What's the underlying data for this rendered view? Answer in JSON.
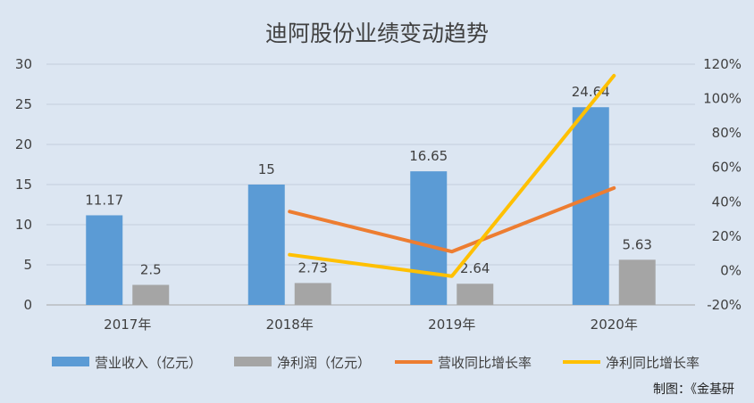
{
  "chart_data": {
    "type": "bar",
    "title": "迪阿股份业绩变动趋势",
    "categories": [
      "2017年",
      "2018年",
      "2019年",
      "2020年"
    ],
    "y_left": {
      "ylim": [
        0,
        30
      ],
      "ticks": [
        "0",
        "5",
        "10",
        "15",
        "20",
        "25",
        "30"
      ]
    },
    "y_right": {
      "ylim": [
        -20,
        120
      ],
      "ticks": [
        "-20%",
        "0%",
        "20%",
        "40%",
        "60%",
        "80%",
        "100%",
        "120%"
      ]
    },
    "series": [
      {
        "name": "营业收入（亿元）",
        "kind": "bar",
        "axis": "left",
        "color": "#5b9bd5",
        "values": [
          11.17,
          15,
          16.65,
          24.64
        ],
        "labels": [
          "11.17",
          "15",
          "16.65",
          "24.64"
        ]
      },
      {
        "name": "净利润（亿元）",
        "kind": "bar",
        "axis": "left",
        "color": "#a5a5a5",
        "values": [
          2.5,
          2.73,
          2.64,
          5.63
        ],
        "labels": [
          "2.5",
          "2.73",
          "2.64",
          "5.63"
        ]
      },
      {
        "name": "营收同比增长率",
        "kind": "line",
        "axis": "right",
        "color": "#ed7d31",
        "values": [
          null,
          34.3,
          11.0,
          48.0
        ]
      },
      {
        "name": "净利同比增长率",
        "kind": "line",
        "axis": "right",
        "color": "#ffc000",
        "values": [
          null,
          9.2,
          -3.3,
          113.3
        ]
      }
    ],
    "grid": true,
    "legend_position": "bottom"
  },
  "source_note": "制图：《金基研"
}
